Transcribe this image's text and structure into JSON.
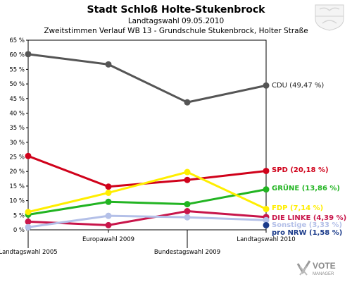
{
  "header": {
    "title": "Stadt Schloß Holte-Stukenbrock",
    "subtitle": "Landtagswahl 09.05.2010",
    "subtitle2": "Zweitstimmen Verlauf WB 13 - Grundschule Stukenbrock, Holter Straße"
  },
  "branding": {
    "crest": "nrw-coat-of-arms",
    "logo_text_1": "VOTE",
    "logo_text_2": "MANAGER"
  },
  "chart_data": {
    "type": "line",
    "categories": [
      "Landtagswahl 2005",
      "Europawahl 2009",
      "Bundestagswahl 2009",
      "Landtagswahl 2010"
    ],
    "ylim": [
      0,
      65
    ],
    "yticks": [
      "0 %",
      "5 %",
      "10 %",
      "15 %",
      "20 %",
      "25 %",
      "30 %",
      "35 %",
      "40 %",
      "45 %",
      "50 %",
      "55 %",
      "60 %",
      "65 %"
    ],
    "grid": false,
    "series": [
      {
        "name": "CDU",
        "label": "CDU (49,47 %)",
        "color": "#555555",
        "values": [
          60.2,
          56.7,
          43.7,
          49.47
        ]
      },
      {
        "name": "SPD",
        "label": "SPD (20,18 %)",
        "color": "#d0021b",
        "values": [
          25.3,
          14.8,
          17.1,
          20.18
        ]
      },
      {
        "name": "GRÜNE",
        "label": "GRÜNE (13,86 %)",
        "color": "#22b422",
        "values": [
          5.2,
          9.6,
          8.8,
          13.86
        ]
      },
      {
        "name": "FDP",
        "label": "FDP (7,14 %)",
        "color": "#ffee00",
        "values": [
          6.1,
          12.7,
          19.8,
          7.14
        ]
      },
      {
        "name": "DIE LINKE",
        "label": "DIE LINKE (4,39 %)",
        "color": "#c8154a",
        "values": [
          2.8,
          1.6,
          6.4,
          4.39
        ]
      },
      {
        "name": "Sonstige",
        "label": "Sonstige (3,33 %)",
        "color": "#b4c0e8",
        "values": [
          0.9,
          4.8,
          4.3,
          3.33
        ]
      },
      {
        "name": "pro NRW",
        "label": "pro NRW (1,58 %)",
        "color": "#1a3a8a",
        "values": [
          null,
          null,
          null,
          1.58
        ]
      }
    ]
  }
}
